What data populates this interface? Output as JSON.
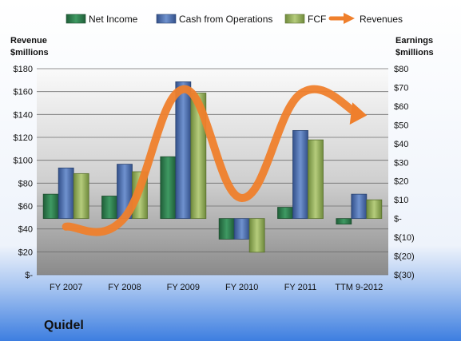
{
  "chart_data": {
    "type": "bar",
    "categories": [
      "FY 2007",
      "FY 2008",
      "FY 2009",
      "FY 2010",
      "FY 2011",
      "TTM 9-2012"
    ],
    "left_axis": {
      "title_line1": "Revenue",
      "title_line2": "$millions",
      "ticks": [
        0,
        20,
        40,
        60,
        80,
        100,
        120,
        140,
        160,
        180
      ],
      "tick_labels": [
        "$-",
        "$20",
        "$40",
        "$60",
        "$80",
        "$100",
        "$120",
        "$140",
        "$160",
        "$180"
      ],
      "ylim": [
        0,
        180
      ]
    },
    "right_axis": {
      "title_line1": "Earnings",
      "title_line2": "$millions",
      "ticks": [
        -30,
        -20,
        -10,
        0,
        10,
        20,
        30,
        40,
        50,
        60,
        70,
        80
      ],
      "tick_labels": [
        "$(30)",
        "$(20)",
        "$(10)",
        "$-",
        "$10",
        "$20",
        "$30",
        "$40",
        "$50",
        "$60",
        "$70",
        "$80"
      ],
      "ylim": [
        -30,
        80
      ]
    },
    "series": [
      {
        "name": "Net Income",
        "type": "bar",
        "axis": "right",
        "color": "#2e7d4f",
        "values": [
          13,
          12,
          33,
          -11,
          6,
          -3
        ]
      },
      {
        "name": "Cash from Operations",
        "type": "bar",
        "axis": "right",
        "color": "#4a6fb0",
        "values": [
          27,
          29,
          73,
          -11,
          47,
          13
        ]
      },
      {
        "name": "FCF",
        "type": "bar",
        "axis": "right",
        "color": "#8fac55",
        "values": [
          24,
          25,
          67,
          -18,
          42,
          10
        ]
      },
      {
        "name": "Revenues",
        "type": "line",
        "axis": "left",
        "color": "#ef7f2c",
        "values": [
          42,
          50,
          162,
          67,
          158,
          140
        ]
      }
    ],
    "legend_position": "top",
    "grid": true
  },
  "footer": {
    "company": "Quidel"
  },
  "colors": {
    "background_top": "#ffffff",
    "background_bottom": "#3d7ee0",
    "plot_top": "#fafafa",
    "plot_bottom": "#8a8a8a",
    "gridline": "#6e6e6e"
  }
}
